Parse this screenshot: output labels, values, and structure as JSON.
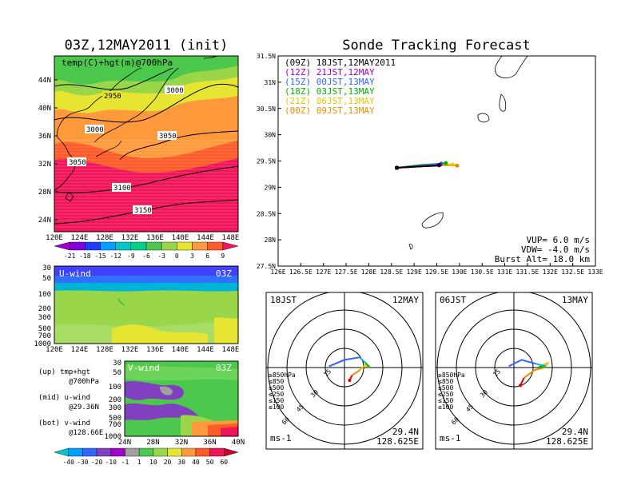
{
  "titles": {
    "left": "03Z,12MAY2011 (init)",
    "right": "Sonde Tracking Forecast"
  },
  "temp_map": {
    "label": "temp(C)+hgt(m)@700hPa",
    "lat_labels": [
      "44N",
      "40N",
      "36N",
      "32N",
      "28N",
      "24N"
    ],
    "lon_labels": [
      "120E",
      "124E",
      "128E",
      "132E",
      "136E",
      "140E",
      "144E",
      "148E"
    ],
    "contours": [
      "2950",
      "3000",
      "3050",
      "3100",
      "3150"
    ]
  },
  "temp_colorbar": {
    "labels": [
      "-21",
      "-18",
      "-15",
      "-12",
      "-9",
      "-6",
      "-3",
      "0",
      "3",
      "6",
      "9"
    ],
    "colors": [
      "#a000c8",
      "#8200dc",
      "#1e3cff",
      "#00a0ff",
      "#00c8c8",
      "#00d28c",
      "#4cc84c",
      "#9ad64a",
      "#e6e632",
      "#ff9a3c",
      "#ff5a28",
      "#f0145a"
    ]
  },
  "u_wind": {
    "label": "U-wind",
    "time": "03Z",
    "pressure_labels": [
      "30",
      "50",
      "100",
      "200",
      "300",
      "500",
      "700",
      "1000"
    ],
    "lon_labels": [
      "120E",
      "124E",
      "128E",
      "132E",
      "136E",
      "140E",
      "144E",
      "148E"
    ]
  },
  "v_wind": {
    "label": "V-wind",
    "time": "03Z",
    "pressure_labels": [
      "30",
      "50",
      "100",
      "200",
      "300",
      "500",
      "700",
      "1000"
    ],
    "lat_labels": [
      "24N",
      "28N",
      "32N",
      "36N",
      "40N"
    ]
  },
  "wind_colorbar": {
    "labels": [
      "-40",
      "-30",
      "-20",
      "-10",
      "-1",
      "1",
      "10",
      "20",
      "30",
      "40",
      "50",
      "60"
    ],
    "colors": [
      "#00c8c8",
      "#00a0ff",
      "#3264ff",
      "#8040c0",
      "#a000c8",
      "#a0a0a0",
      "#4cc84c",
      "#9ad64a",
      "#e6e632",
      "#ff9a3c",
      "#ff5a28",
      "#f0145a",
      "#c80032"
    ]
  },
  "description": [
    "(up) tmp+hgt",
    "@700hPa",
    "(mid) u-wind",
    "@29.36N",
    "(bot) v-wind",
    "@128.66E"
  ],
  "track_legend": [
    "(09Z) 18JST,12MAY2011",
    "(12Z) 21JST,12MAY",
    "(15Z) 00JST,13MAY",
    "(18Z) 03JST,13MAY",
    "(21Z) 06JST,13MAY",
    "(00Z) 09JST,13MAY"
  ],
  "sonde_params": [
    "VUP= 6.0 m/s",
    "VDW= -4.0 m/s",
    "Burst Alt= 18.0 km"
  ],
  "track_axes": {
    "lat_labels": [
      "31.5N",
      "31N",
      "30.5N",
      "30N",
      "29.5N",
      "29N",
      "28.5N",
      "28N",
      "27.5N"
    ],
    "lon_labels": [
      "126E",
      "126.5E",
      "127E",
      "127.5E",
      "128E",
      "128.5E",
      "129E",
      "129.5E",
      "130E",
      "130.5E",
      "131E",
      "131.5E",
      "132E",
      "132.5E",
      "133E"
    ]
  },
  "levels": [
    "≥850hPa",
    "≤850",
    "≤500",
    "≤250",
    "≤150",
    "≤100"
  ],
  "wind_profiles": [
    {
      "time": "18JST",
      "date": "12MAY",
      "rings": [
        "15",
        "30",
        "45",
        "60"
      ],
      "lat": "29.4N",
      "lon": "128.625E",
      "unit": "ms-1"
    },
    {
      "time": "06JST",
      "date": "13MAY",
      "rings": [
        "15",
        "30",
        "45",
        "60"
      ],
      "lat": "29.4N",
      "lon": "128.625E",
      "unit": "ms-1"
    }
  ],
  "chart_data": [
    {
      "type": "line",
      "title": "Sonde Tracking Forecast",
      "xlabel": "",
      "ylabel": "",
      "xlim": [
        126,
        133
      ],
      "ylim": [
        27.5,
        31.5
      ],
      "series": [
        {
          "name": "(09Z) 18JST,12MAY2011",
          "color": "#000000",
          "x": [
            128.62,
            129.0,
            129.5,
            129.55
          ],
          "y": [
            29.37,
            29.39,
            29.41,
            29.42
          ]
        },
        {
          "name": "(12Z) 21JST,12MAY",
          "color": "#a000c8",
          "x": [
            128.62,
            129.0,
            129.5,
            129.58
          ],
          "y": [
            29.37,
            29.39,
            29.42,
            29.43
          ]
        },
        {
          "name": "(15Z) 00JST,13MAY",
          "color": "#3264ff",
          "x": [
            128.62,
            129.0,
            129.5,
            129.6
          ],
          "y": [
            29.37,
            29.4,
            29.44,
            29.45
          ]
        },
        {
          "name": "(18Z) 03JST,13MAY",
          "color": "#00b400",
          "x": [
            128.62,
            129.1,
            129.6,
            129.7
          ],
          "y": [
            29.37,
            29.42,
            29.45,
            29.46
          ]
        },
        {
          "name": "(21Z) 06JST,13MAY",
          "color": "#e6c800",
          "x": [
            128.62,
            129.2,
            129.7,
            129.85
          ],
          "y": [
            29.37,
            29.43,
            29.44,
            29.43
          ]
        },
        {
          "name": "(00Z) 09JST,13MAY",
          "color": "#f08c00",
          "x": [
            128.62,
            129.3,
            129.8,
            129.95
          ],
          "y": [
            29.37,
            29.42,
            29.42,
            29.41
          ]
        }
      ]
    },
    {
      "type": "line",
      "title": "18JST 12MAY",
      "xlabel": "",
      "ylabel": "",
      "xlim": [
        -60,
        60
      ],
      "ylim": [
        -60,
        60
      ],
      "series": [
        {
          "name": "≥850hPa",
          "color": "#e00000",
          "x": [
            4,
            6
          ],
          "y": [
            -10,
            -6
          ]
        },
        {
          "name": "≤850",
          "color": "#f08c00",
          "x": [
            6,
            9,
            12
          ],
          "y": [
            -6,
            -4,
            -2
          ]
        },
        {
          "name": "≤500",
          "color": "#e6c800",
          "x": [
            12,
            16,
            20
          ],
          "y": [
            -2,
            2,
            0
          ]
        },
        {
          "name": "≤250",
          "color": "#00b400",
          "x": [
            20,
            16
          ],
          "y": [
            0,
            4
          ]
        },
        {
          "name": "≤150",
          "color": "#00b4d8",
          "x": [
            16,
            12
          ],
          "y": [
            4,
            8
          ]
        },
        {
          "name": "≤100",
          "color": "#3264ff",
          "x": [
            12,
            0,
            -12
          ],
          "y": [
            8,
            6,
            1
          ]
        }
      ]
    },
    {
      "type": "line",
      "title": "06JST 13MAY",
      "xlabel": "",
      "ylabel": "",
      "xlim": [
        -60,
        60
      ],
      "ylim": [
        -60,
        60
      ],
      "series": [
        {
          "name": "≥850hPa",
          "color": "#e00000",
          "x": [
            5,
            8
          ],
          "y": [
            -14,
            -8
          ]
        },
        {
          "name": "≤850",
          "color": "#f08c00",
          "x": [
            8,
            16,
            24
          ],
          "y": [
            -8,
            -2,
            0
          ]
        },
        {
          "name": "≤500",
          "color": "#e6c800",
          "x": [
            24,
            27,
            23
          ],
          "y": [
            0,
            4,
            2
          ]
        },
        {
          "name": "≤250",
          "color": "#00b400",
          "x": [
            23,
            19,
            25
          ],
          "y": [
            2,
            0,
            1
          ]
        },
        {
          "name": "≤150",
          "color": "#00b4d8",
          "x": [
            25,
            17
          ],
          "y": [
            1,
            3
          ]
        },
        {
          "name": "≤100",
          "color": "#3264ff",
          "x": [
            17,
            6,
            -4
          ],
          "y": [
            3,
            6,
            1
          ]
        }
      ]
    }
  ]
}
